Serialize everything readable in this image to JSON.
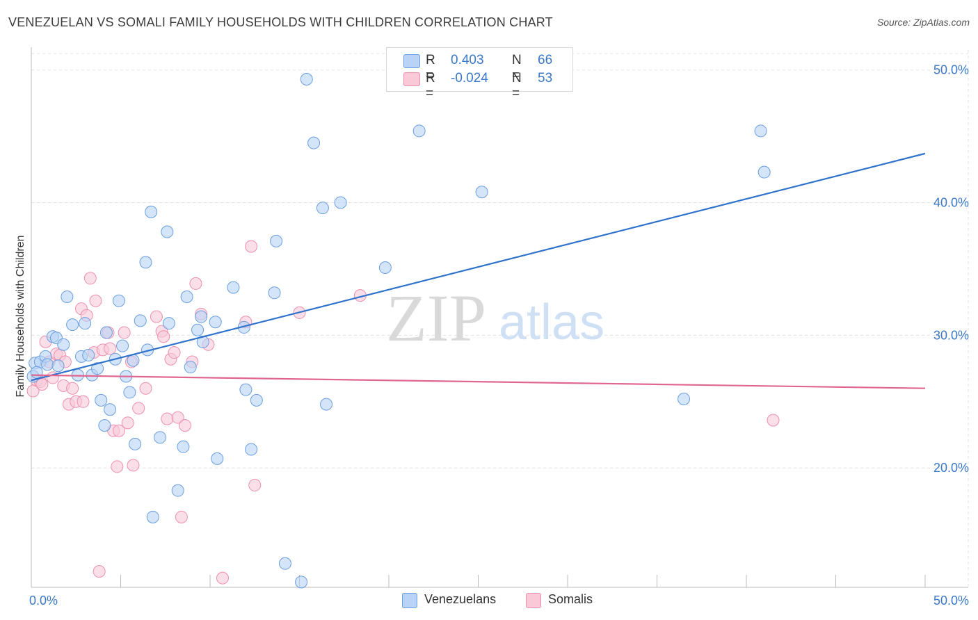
{
  "title": "VENEZUELAN VS SOMALI FAMILY HOUSEHOLDS WITH CHILDREN CORRELATION CHART",
  "source": "Source: ZipAtlas.com",
  "watermark": {
    "zip": "ZIP",
    "atlas": "atlas"
  },
  "legend_top": {
    "rows": [
      {
        "r_label": "R =",
        "r_value": "0.403",
        "n_label": "N =",
        "n_value": "66"
      },
      {
        "r_label": "R =",
        "r_value": "-0.024",
        "n_label": "N =",
        "n_value": "53"
      }
    ]
  },
  "legend_bottom": {
    "items": [
      "Venezuelans",
      "Somalis"
    ]
  },
  "colors": {
    "venezuelans_fill": "#b8d3f5",
    "venezuelans_stroke": "#6a9ee0",
    "venezuelans_line": "#2f72cc",
    "somalis_fill": "#f9c9d8",
    "somalis_stroke": "#ee8fae",
    "somalis_line": "#e06690",
    "grid": "#e2e2e2",
    "tick_label": "#3a78c8"
  },
  "chart_data": {
    "type": "scatter",
    "title": "VENEZUELAN VS SOMALI FAMILY HOUSEHOLDS WITH CHILDREN CORRELATION CHART",
    "xlabel": "",
    "ylabel": "Family Households with Children",
    "xlim": [
      0,
      50
    ],
    "ylim": [
      11,
      51.5
    ],
    "x_tick_labels": [
      "0.0%",
      "50.0%"
    ],
    "y_ticks": [
      20,
      30,
      40,
      50
    ],
    "y_tick_labels": [
      "20.0%",
      "30.0%",
      "40.0%",
      "50.0%"
    ],
    "grid": true,
    "legend_position": "bottom",
    "series": [
      {
        "name": "Venezuelans",
        "r": 0.403,
        "n": 66,
        "trend": {
          "x": [
            0,
            50
          ],
          "y": [
            26.6,
            43.7
          ]
        },
        "points": [
          [
            0.2,
            27.9
          ],
          [
            0.5,
            28.0
          ],
          [
            0.8,
            28.4
          ],
          [
            0.9,
            27.8
          ],
          [
            1.2,
            29.9
          ],
          [
            1.4,
            29.8
          ],
          [
            1.5,
            27.7
          ],
          [
            1.8,
            29.3
          ],
          [
            2.0,
            32.9
          ],
          [
            2.3,
            30.8
          ],
          [
            2.6,
            27.0
          ],
          [
            2.8,
            28.4
          ],
          [
            3.0,
            30.9
          ],
          [
            3.2,
            28.5
          ],
          [
            3.4,
            27.0
          ],
          [
            3.7,
            27.5
          ],
          [
            3.9,
            25.1
          ],
          [
            4.2,
            30.2
          ],
          [
            4.1,
            23.2
          ],
          [
            4.4,
            24.4
          ],
          [
            4.7,
            28.2
          ],
          [
            4.9,
            32.6
          ],
          [
            5.1,
            29.2
          ],
          [
            5.3,
            26.9
          ],
          [
            5.5,
            25.7
          ],
          [
            5.7,
            28.1
          ],
          [
            5.8,
            21.8
          ],
          [
            6.1,
            31.1
          ],
          [
            6.4,
            35.5
          ],
          [
            6.5,
            28.9
          ],
          [
            6.7,
            39.3
          ],
          [
            6.8,
            16.3
          ],
          [
            7.2,
            22.3
          ],
          [
            7.6,
            37.8
          ],
          [
            7.7,
            30.9
          ],
          [
            8.2,
            18.3
          ],
          [
            8.5,
            21.6
          ],
          [
            8.7,
            32.9
          ],
          [
            8.9,
            27.6
          ],
          [
            9.3,
            30.4
          ],
          [
            9.5,
            31.4
          ],
          [
            9.6,
            29.5
          ],
          [
            10.3,
            31.0
          ],
          [
            10.4,
            20.7
          ],
          [
            11.3,
            33.6
          ],
          [
            11.9,
            30.6
          ],
          [
            12.0,
            25.9
          ],
          [
            12.3,
            21.4
          ],
          [
            12.6,
            25.1
          ],
          [
            13.7,
            37.1
          ],
          [
            13.6,
            33.2
          ],
          [
            14.2,
            12.8
          ],
          [
            15.1,
            11.4
          ],
          [
            15.4,
            49.3
          ],
          [
            15.8,
            44.5
          ],
          [
            16.3,
            39.6
          ],
          [
            16.5,
            24.8
          ],
          [
            17.3,
            40.0
          ],
          [
            19.8,
            35.1
          ],
          [
            21.7,
            45.4
          ],
          [
            25.2,
            40.8
          ],
          [
            36.5,
            25.2
          ],
          [
            40.8,
            45.4
          ],
          [
            41.0,
            42.3
          ],
          [
            0.1,
            26.9
          ],
          [
            0.3,
            27.2
          ]
        ]
      },
      {
        "name": "Somalis",
        "r": -0.024,
        "n": 53,
        "trend": {
          "x": [
            0,
            50
          ],
          "y": [
            27.0,
            26.0
          ]
        },
        "points": [
          [
            0.1,
            25.8
          ],
          [
            0.3,
            26.6
          ],
          [
            0.5,
            26.5
          ],
          [
            0.6,
            26.3
          ],
          [
            0.8,
            29.5
          ],
          [
            1.0,
            28.0
          ],
          [
            1.2,
            26.8
          ],
          [
            1.4,
            28.6
          ],
          [
            1.6,
            28.5
          ],
          [
            1.8,
            26.2
          ],
          [
            1.9,
            28.0
          ],
          [
            2.1,
            24.8
          ],
          [
            2.3,
            26.0
          ],
          [
            2.5,
            25.0
          ],
          [
            2.8,
            32.0
          ],
          [
            2.9,
            25.0
          ],
          [
            3.1,
            31.5
          ],
          [
            3.3,
            34.3
          ],
          [
            3.5,
            28.7
          ],
          [
            3.6,
            32.6
          ],
          [
            3.8,
            12.2
          ],
          [
            4.0,
            28.9
          ],
          [
            4.3,
            30.2
          ],
          [
            4.4,
            29.0
          ],
          [
            4.6,
            22.8
          ],
          [
            4.8,
            20.1
          ],
          [
            4.9,
            22.8
          ],
          [
            5.2,
            30.2
          ],
          [
            5.4,
            23.4
          ],
          [
            5.6,
            28.0
          ],
          [
            5.7,
            20.2
          ],
          [
            6.0,
            24.5
          ],
          [
            6.4,
            26.0
          ],
          [
            7.0,
            31.4
          ],
          [
            7.3,
            30.3
          ],
          [
            7.4,
            29.9
          ],
          [
            7.6,
            23.7
          ],
          [
            7.8,
            28.2
          ],
          [
            8.0,
            28.7
          ],
          [
            8.2,
            23.8
          ],
          [
            8.4,
            16.3
          ],
          [
            8.6,
            23.2
          ],
          [
            9.0,
            28.0
          ],
          [
            9.2,
            33.9
          ],
          [
            9.5,
            31.6
          ],
          [
            9.9,
            29.3
          ],
          [
            10.7,
            11.7
          ],
          [
            12.0,
            31.0
          ],
          [
            12.3,
            36.7
          ],
          [
            12.5,
            18.7
          ],
          [
            15.0,
            31.7
          ],
          [
            18.4,
            33.0
          ],
          [
            41.5,
            23.6
          ]
        ]
      }
    ]
  }
}
